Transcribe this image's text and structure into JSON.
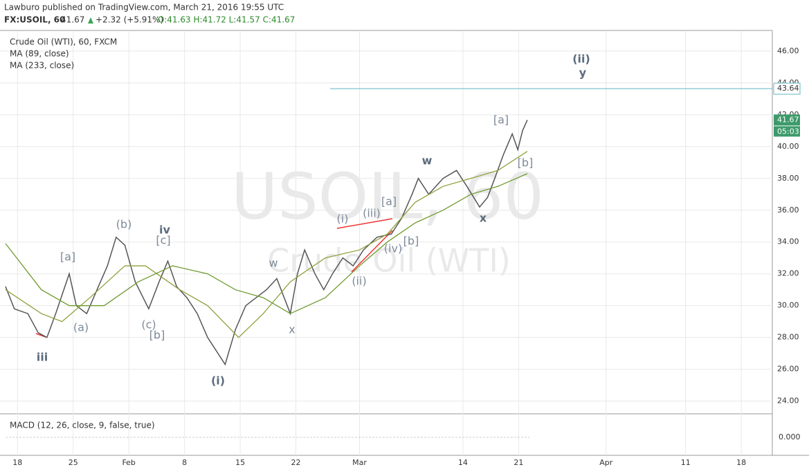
{
  "header": {
    "publisher": "Lawburo published on TradingView.com, March 21, 2016 19:55 UTC",
    "symbol": "FX:USOIL, 60",
    "last": "41.67",
    "change": "+2.32 (+5.91%)",
    "ohlc": "O:41.63 H:41.72 L:41.57 C:41.67"
  },
  "chart_data": {
    "type": "line",
    "title": "Crude Oil (WTI), 60, FXCM",
    "watermark": "USOIL, 60",
    "watermark_sub": "Crude Oil (WTI)",
    "xlim": [
      15.8,
      112.9
    ],
    "xticks": [
      {
        "value": 18,
        "label": "18"
      },
      {
        "value": 25,
        "label": "25"
      },
      {
        "value": 32,
        "label": "Feb"
      },
      {
        "value": 39,
        "label": "8"
      },
      {
        "value": 46,
        "label": "15"
      },
      {
        "value": 53,
        "label": "22"
      },
      {
        "value": 61,
        "label": "Mar"
      },
      {
        "value": 74,
        "label": "14"
      },
      {
        "value": 81,
        "label": "21"
      },
      {
        "value": 92,
        "label": "Apr"
      },
      {
        "value": 102,
        "label": "11"
      },
      {
        "value": 109,
        "label": "18"
      }
    ],
    "ylim": [
      23.2,
      47.3
    ],
    "yticks": [
      {
        "value": 24,
        "label": "24.00"
      },
      {
        "value": 26,
        "label": "26.00"
      },
      {
        "value": 28,
        "label": "28.00"
      },
      {
        "value": 30,
        "label": "30.00"
      },
      {
        "value": 32,
        "label": "32.00"
      },
      {
        "value": 34,
        "label": "34.00"
      },
      {
        "value": 36,
        "label": "36.00"
      },
      {
        "value": 38,
        "label": "38.00"
      },
      {
        "value": 40,
        "label": "40.00"
      },
      {
        "value": 42,
        "label": "42.00"
      },
      {
        "value": 44,
        "label": "44.00"
      },
      {
        "value": 46,
        "label": "46.00"
      }
    ],
    "grid": true,
    "series": [
      {
        "name": "USOIL",
        "color": "#555555",
        "x": [
          16.5,
          17.6,
          19.3,
          20.6,
          21.7,
          22.8,
          24.5,
          25.4,
          26.7,
          28.0,
          29.3,
          30.4,
          31.5,
          32.8,
          34.5,
          35.8,
          36.9,
          38.0,
          39.3,
          40.6,
          41.9,
          43.2,
          44.1,
          45.4,
          46.7,
          48.0,
          49.3,
          50.6,
          52.3,
          53.2,
          54.1,
          55.4,
          56.5,
          57.6,
          58.9,
          60.2,
          61.5,
          63.2,
          65.0,
          66.3,
          67.6,
          68.4,
          69.7,
          71.5,
          73.2,
          74.5,
          76.1,
          77.1,
          78.0,
          79.1,
          80.2,
          80.9,
          81.5,
          82.1
        ],
        "values": [
          31.2,
          29.8,
          29.5,
          28.3,
          28.0,
          29.5,
          32.0,
          30.0,
          29.5,
          31.0,
          32.5,
          34.3,
          33.8,
          31.5,
          29.8,
          31.5,
          32.8,
          31.2,
          30.5,
          29.5,
          28.0,
          27.0,
          26.3,
          28.5,
          30.0,
          30.5,
          31.0,
          31.7,
          29.5,
          32.0,
          33.5,
          32.0,
          31.0,
          32.0,
          33.0,
          32.5,
          33.5,
          34.3,
          34.5,
          35.5,
          37.0,
          38.0,
          37.0,
          38.0,
          38.5,
          37.5,
          36.2,
          36.8,
          38.0,
          39.5,
          40.8,
          39.8,
          41.0,
          41.67
        ]
      },
      {
        "name": "MA (89, close)",
        "color": "#8da13a",
        "x": [
          16.5,
          21.0,
          23.6,
          27.1,
          31.5,
          34.1,
          38.4,
          41.9,
          45.8,
          48.9,
          52.3,
          56.7,
          61.0,
          64.5,
          68.0,
          71.5,
          75.0,
          78.4,
          82.1
        ],
        "values": [
          31.0,
          29.5,
          29.0,
          30.5,
          32.5,
          32.5,
          31.0,
          30.0,
          28.0,
          29.5,
          31.5,
          33.0,
          33.5,
          34.5,
          36.5,
          37.5,
          38.0,
          38.5,
          39.7
        ]
      },
      {
        "name": "MA (233, close)",
        "color": "#6f9a2e",
        "x": [
          16.5,
          21.0,
          24.5,
          28.9,
          33.2,
          37.5,
          41.9,
          45.4,
          48.9,
          52.3,
          56.7,
          61.0,
          64.5,
          68.0,
          71.5,
          75.0,
          78.4,
          82.1
        ],
        "values": [
          33.9,
          31.0,
          30.0,
          30.0,
          31.5,
          32.5,
          32.0,
          31.0,
          30.5,
          29.5,
          30.5,
          32.5,
          34.0,
          35.2,
          36.0,
          37.0,
          37.5,
          38.3
        ]
      }
    ],
    "hline": 43.64,
    "last_price": 41.67,
    "countdown": "05:03",
    "annotations": [
      "iii",
      "[a]",
      "(a)",
      "(b)",
      "iv",
      "[c]",
      "(c)",
      "[b]",
      "(i)",
      "w",
      "x",
      "(i)",
      "(iii)",
      "[a]",
      "(ii)",
      "(iv)",
      "[b]",
      "w",
      "x",
      "[a]",
      "[b]",
      "(ii)",
      "y"
    ],
    "macd": {
      "title": "MACD (12, 26, close, 9, false, true)",
      "yticks": [
        {
          "value": 0,
          "label": "0.000"
        }
      ]
    }
  }
}
